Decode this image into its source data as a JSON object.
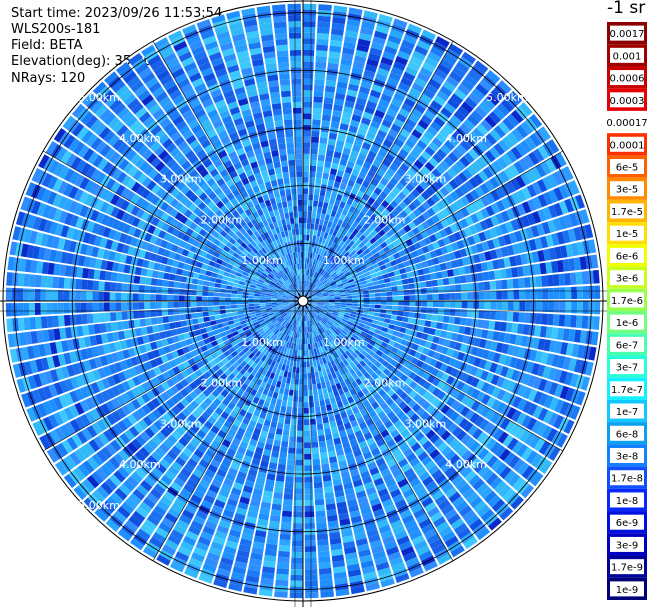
{
  "header": {
    "start_time": "Start time: 2023/09/26 11:53:54",
    "instrument": "WLS200s-181",
    "field": "Field: BETA",
    "elevation": "Elevation(deg): 35.30",
    "nrays": "NRays: 120"
  },
  "chart_data": {
    "type": "heatmap",
    "projection": "polar (PPI scan)",
    "field": "BETA",
    "unit": "-1 sr",
    "n_rays": 120,
    "rings_km": [
      1,
      2,
      3,
      4,
      5
    ],
    "ring_labels": [
      "1.00km",
      "2.00km",
      "3.00km",
      "4.00km",
      "5.00km"
    ],
    "max_range_km": 5.2,
    "spokes_deg": [
      0,
      30,
      60,
      90,
      120,
      150,
      180,
      210,
      240,
      270,
      300,
      330
    ],
    "colorbar": {
      "labels": [
        "0.0017",
        "0.001",
        "0.0006",
        "0.0003",
        "0.00017",
        "0.0001",
        "6e-5",
        "3e-5",
        "1.7e-5",
        "1e-5",
        "6e-6",
        "3e-6",
        "1.7e-6",
        "1e-6",
        "6e-7",
        "3e-7",
        "1.7e-7",
        "1e-7",
        "6e-8",
        "3e-8",
        "1.7e-8",
        "1e-8",
        "6e-9",
        "3e-9",
        "1.7e-9",
        "1e-9"
      ],
      "colors": [
        "#8b0000",
        "#a00000",
        "#c80000",
        "#e60000",
        "#ffffff",
        "#ff3000",
        "#ff6000",
        "#ff8a00",
        "#ffb400",
        "#ffdd00",
        "#f0ff00",
        "#c8ff20",
        "#98ff50",
        "#70ff80",
        "#48ffb0",
        "#28ffd8",
        "#10f0ff",
        "#10c8ff",
        "#0aa0f0",
        "#1480ff",
        "#1050ff",
        "#0828ff",
        "#0010e0",
        "#0000c0",
        "#00009a",
        "#000078"
      ]
    },
    "dominant_range": [
      "1e-8",
      "1e-7"
    ]
  }
}
